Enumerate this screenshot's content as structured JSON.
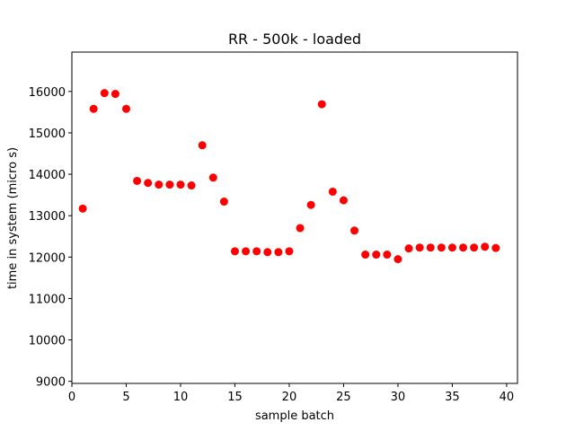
{
  "chart_data": {
    "type": "scatter",
    "title": "RR - 500k - loaded",
    "xlabel": "sample batch",
    "ylabel": "time in system (micro s)",
    "xlim": [
      0,
      41
    ],
    "ylim": [
      8950,
      16950
    ],
    "xticks": [
      0,
      5,
      10,
      15,
      20,
      25,
      30,
      35,
      40
    ],
    "yticks": [
      9000,
      10000,
      11000,
      12000,
      13000,
      14000,
      15000,
      16000
    ],
    "grid": false,
    "marker_color": "#ff0000",
    "series": [
      {
        "x": [
          1,
          2,
          3,
          4,
          5,
          6,
          7,
          8,
          9,
          10,
          11,
          12,
          13,
          14,
          15,
          16,
          17,
          18,
          19,
          20,
          21,
          22,
          23,
          24,
          25,
          26,
          27,
          28,
          29,
          30,
          31,
          32,
          33,
          34,
          35,
          36,
          37,
          38,
          39
        ],
        "y": [
          13170,
          15580,
          15960,
          15940,
          15580,
          13840,
          13790,
          13750,
          13750,
          13750,
          13730,
          14700,
          13920,
          13340,
          12140,
          12140,
          12140,
          12120,
          12120,
          12140,
          12700,
          13260,
          15690,
          13580,
          13370,
          12640,
          12060,
          12060,
          12060,
          11950,
          12210,
          12230,
          12230,
          12230,
          12230,
          12230,
          12230,
          12250,
          12220
        ]
      }
    ]
  }
}
